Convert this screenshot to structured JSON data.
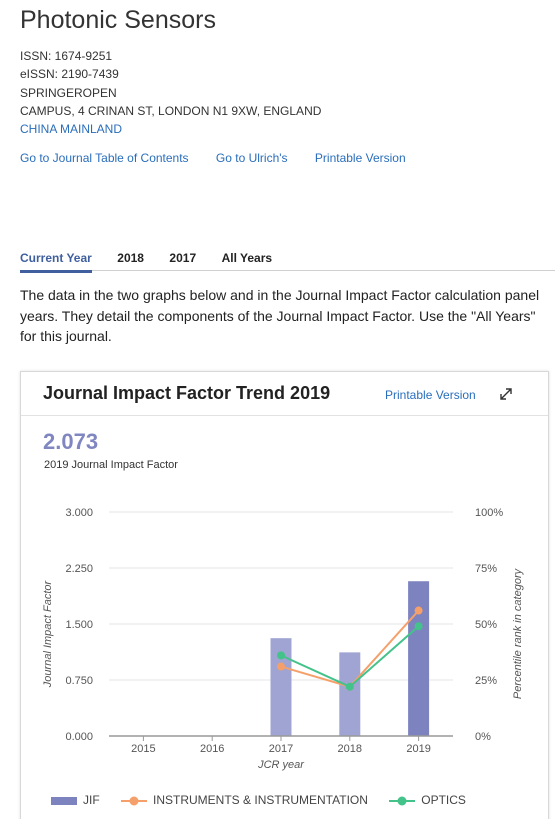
{
  "journal": {
    "title": "Photonic Sensors",
    "issn": "ISSN: 1674-9251",
    "eissn": "eISSN: 2190-7439",
    "publisher": "SPRINGEROPEN",
    "address": "CAMPUS, 4 CRINAN ST, LONDON N1 9XW, ENGLAND",
    "country": "CHINA MAINLAND"
  },
  "links": {
    "toc": "Go to Journal Table of Contents",
    "ulrich": "Go to Ulrich's",
    "printable": "Printable Version"
  },
  "tabs": [
    "Current Year",
    "2018",
    "2017",
    "All Years"
  ],
  "description": {
    "line1": "The data in the two graphs below and in the Journal Impact Factor calculation panel",
    "line2": "years. They detail the components of the Journal Impact Factor. Use the \"All Years\"",
    "line3": "for this journal."
  },
  "card": {
    "title": "Journal Impact Factor Trend 2019",
    "printable": "Printable Version",
    "jif_value": "2.073",
    "jif_label": "2019 Journal Impact Factor"
  },
  "chart_data": {
    "type": "bar",
    "xlabel": "JCR year",
    "ylabel": "Journal Impact Factor",
    "y2label": "Percentile rank in category",
    "ylim": [
      0,
      3
    ],
    "y2lim": [
      0,
      100
    ],
    "yticks": [
      "0.000",
      "0.750",
      "1.500",
      "2.250",
      "3.000"
    ],
    "y2ticks": [
      "0%",
      "25%",
      "50%",
      "75%",
      "100%"
    ],
    "categories": [
      "2015",
      "2016",
      "2017",
      "2018",
      "2019"
    ],
    "series": [
      {
        "name": "JIF",
        "kind": "bar",
        "color": "#9fa4d2",
        "highlight_color": "#7d83bf",
        "values": [
          null,
          null,
          1.31,
          1.12,
          2.073
        ]
      },
      {
        "name": "INSTRUMENTS & INSTRUMENTATION",
        "kind": "line",
        "color": "#f5a06b",
        "values": [
          null,
          null,
          31,
          22,
          56
        ]
      },
      {
        "name": "OPTICS",
        "kind": "line",
        "color": "#43c28a",
        "values": [
          null,
          null,
          36,
          22,
          49
        ]
      }
    ],
    "grid": true,
    "legend": "bottom-left"
  }
}
